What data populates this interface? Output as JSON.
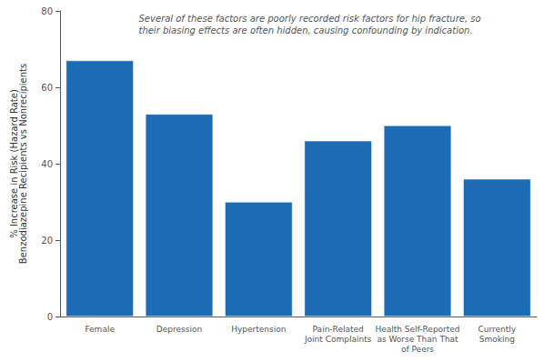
{
  "chart_data": {
    "type": "bar",
    "categories": [
      "Female",
      "Depression",
      "Hypertension",
      "Pain-Related\nJoint Complaints",
      "Health Self-Reported\nas Worse Than That\nof Peers",
      "Currently\nSmoking"
    ],
    "values": [
      67,
      53,
      30,
      46,
      50,
      36
    ],
    "color": "#1B6BB5",
    "ylabel": "% Increase in Risk (Hazard Rate)\nBenzodiazepine Recipients vs Nonrecipients",
    "annotation": "Several of these factors are poorly recorded risk factors for hip fracture, so\ntheir biasing effects are often hidden, causing confounding by indication.",
    "ylim": [
      0,
      80
    ],
    "yticks": [
      0,
      20,
      40,
      60,
      80
    ],
    "grid": false
  }
}
